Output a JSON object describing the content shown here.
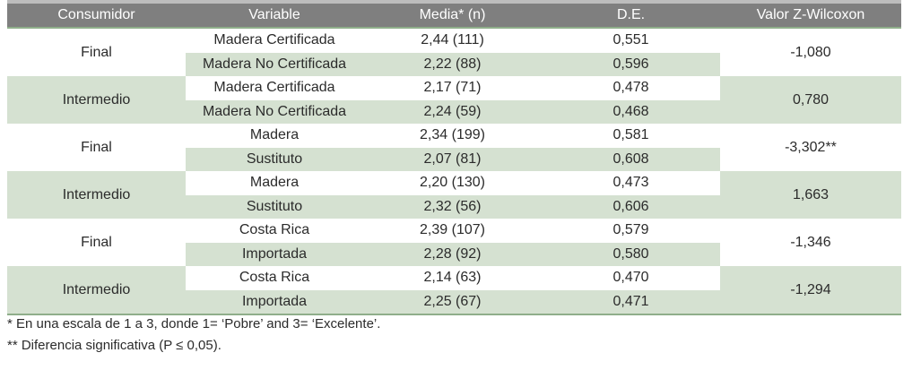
{
  "table": {
    "headers": [
      "Consumidor",
      "Variable",
      "Media* (n)",
      "D.E.",
      "Valor Z-Wilcoxon"
    ],
    "groups": [
      {
        "consumidor": "Final",
        "z": "-1,080",
        "rows": [
          {
            "variable": "Madera Certificada",
            "media": "2,44 (111)",
            "de": "0,551"
          },
          {
            "variable": "Madera No Certificada",
            "media": "2,22 (88)",
            "de": "0,596"
          }
        ]
      },
      {
        "consumidor": "Intermedio",
        "z": "0,780",
        "rows": [
          {
            "variable": "Madera Certificada",
            "media": "2,17 (71)",
            "de": "0,478"
          },
          {
            "variable": "Madera No Certificada",
            "media": "2,24 (59)",
            "de": "0,468"
          }
        ]
      },
      {
        "consumidor": "Final",
        "z": "-3,302**",
        "rows": [
          {
            "variable": "Madera",
            "media": "2,34 (199)",
            "de": "0,581"
          },
          {
            "variable": "Sustituto",
            "media": "2,07 (81)",
            "de": "0,608"
          }
        ]
      },
      {
        "consumidor": "Intermedio",
        "z": "1,663",
        "rows": [
          {
            "variable": "Madera",
            "media": "2,20 (130)",
            "de": "0,473"
          },
          {
            "variable": "Sustituto",
            "media": "2,32 (56)",
            "de": "0,606"
          }
        ]
      },
      {
        "consumidor": "Final",
        "z": "-1,346",
        "rows": [
          {
            "variable": "Costa Rica",
            "media": "2,39 (107)",
            "de": "0,579"
          },
          {
            "variable": "Importada",
            "media": "2,28 (92)",
            "de": "0,580"
          }
        ]
      },
      {
        "consumidor": "Intermedio",
        "z": "-1,294",
        "rows": [
          {
            "variable": "Costa Rica",
            "media": "2,14 (63)",
            "de": "0,470"
          },
          {
            "variable": "Importada",
            "media": "2,25 (67)",
            "de": "0,471"
          }
        ]
      }
    ]
  },
  "notes": {
    "note1": "* En una escala de 1 a 3, donde 1= ‘Pobre’ and 3= ‘Excelente’.",
    "note2": "** Diferencia significativa (P ≤ 0,05)."
  }
}
